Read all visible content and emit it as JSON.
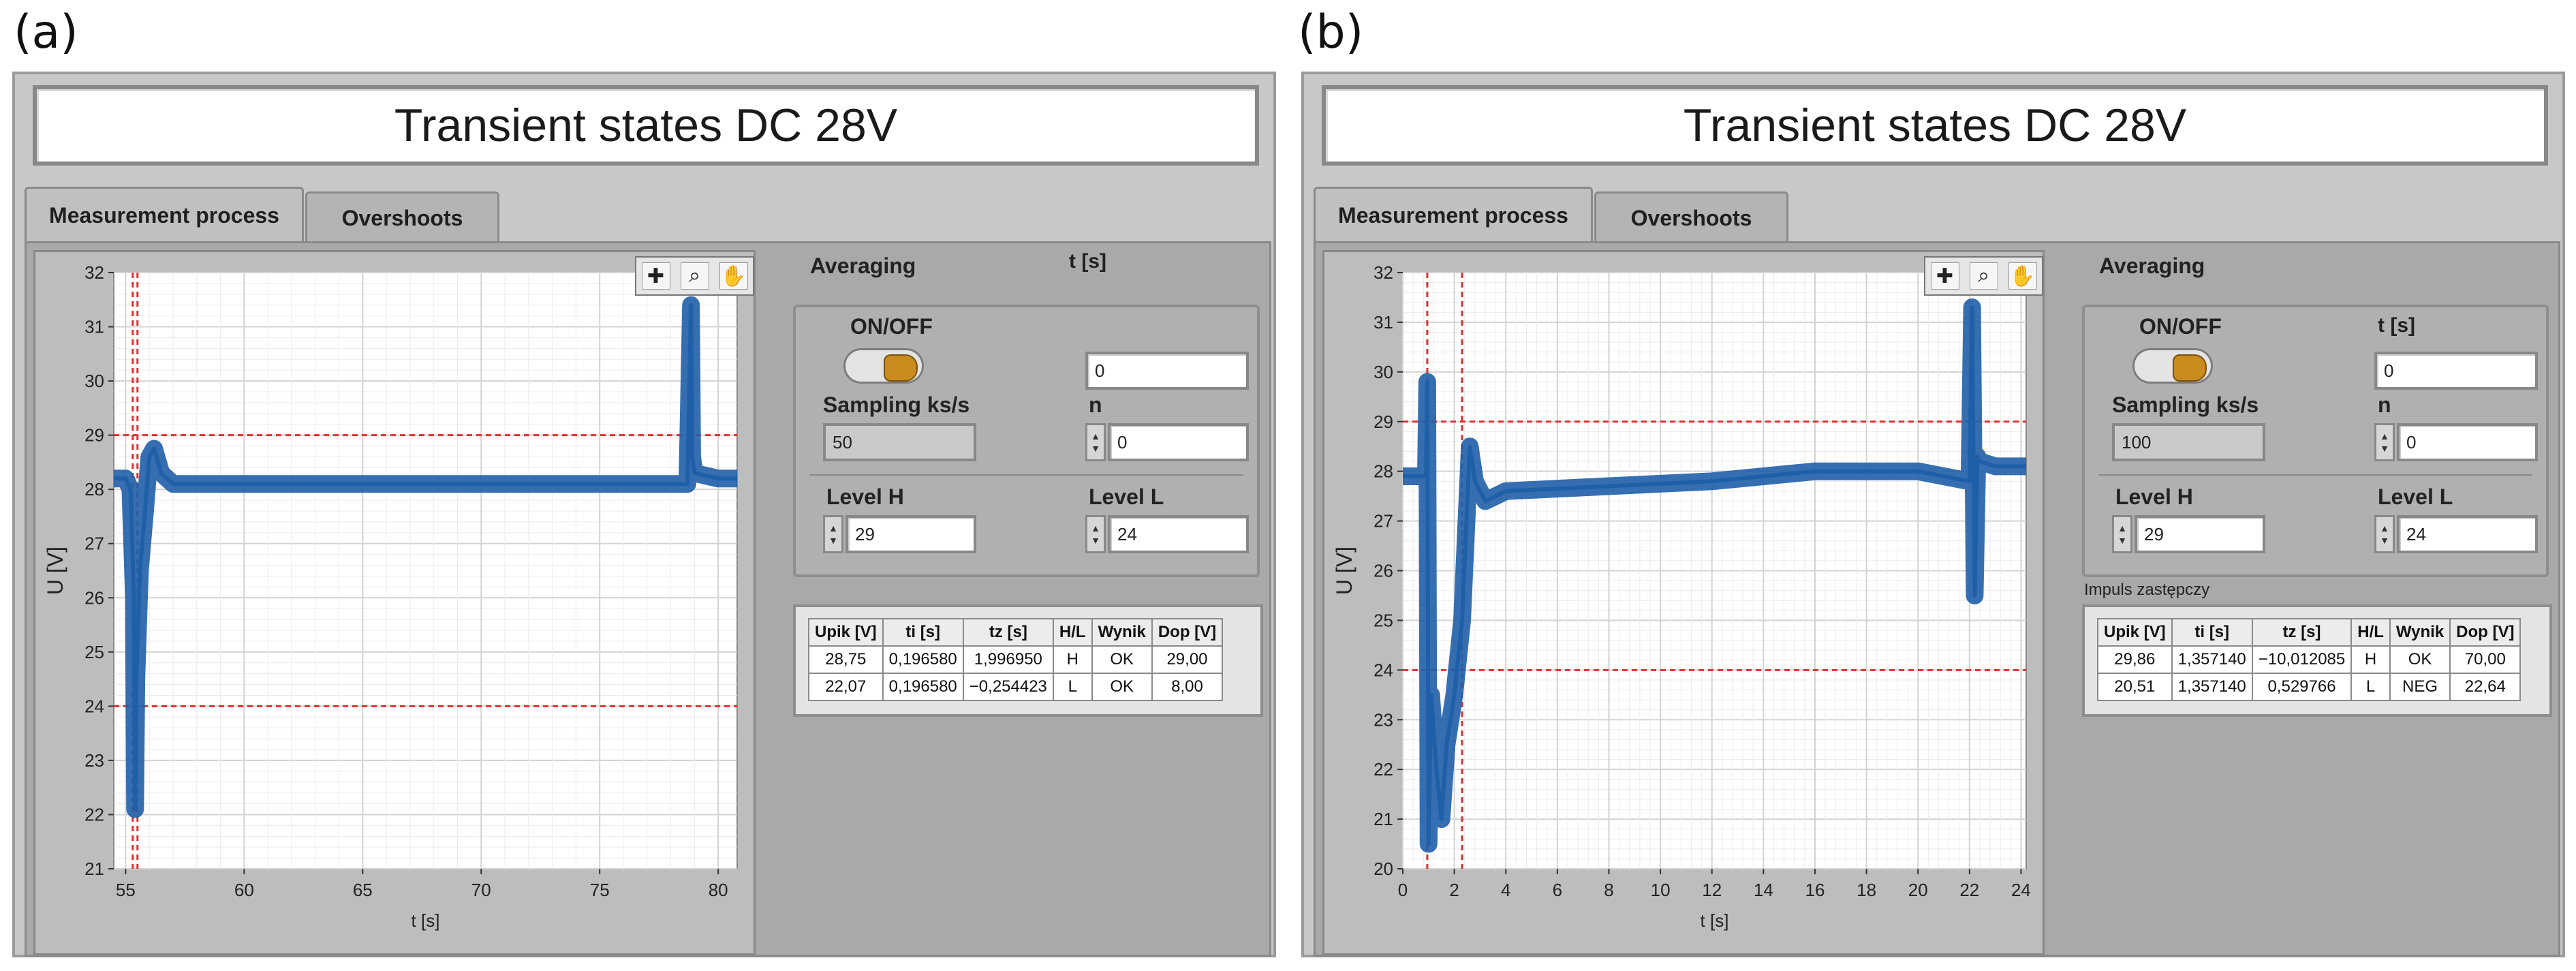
{
  "panels": [
    {
      "letter": "(a)",
      "title": "Transient states DC 28V",
      "tabs": [
        "Measurement process",
        "Overshoots"
      ],
      "averaging_label": "Averaging",
      "onoff_label": "ON/OFF",
      "t_label": "t [s]",
      "t_value": "0",
      "sampling_label": "Sampling ks/s",
      "sampling_value": "50",
      "n_label": "n",
      "n_value": "0",
      "level_h_label": "Level H",
      "level_h_value": "29",
      "level_l_label": "Level L",
      "level_l_value": "24",
      "impuls_label": "",
      "table": {
        "headers": [
          "Upik [V]",
          "ti [s]",
          "tz [s]",
          "H/L",
          "Wynik",
          "Dop [V]"
        ],
        "rows": [
          [
            "28,75",
            "0,196580",
            "1,996950",
            "H",
            "OK",
            "29,00"
          ],
          [
            "22,07",
            "0,196580",
            "−0,254423",
            "L",
            "OK",
            "8,00"
          ]
        ]
      },
      "chart_data": {
        "type": "line",
        "xlabel": "t [s]",
        "ylabel": "U [V]",
        "xlim": [
          54.5,
          80.8
        ],
        "ylim": [
          21,
          32
        ],
        "x_ticks": [
          "55",
          "60",
          "65",
          "70",
          "75",
          "80"
        ],
        "y_ticks": [
          "21",
          "22",
          "23",
          "24",
          "25",
          "26",
          "27",
          "28",
          "29",
          "30",
          "31",
          "32"
        ],
        "grid": true,
        "line_color": "#1f5fa8",
        "band_color": "#1f5fa8",
        "level_lines": [
          29,
          24
        ],
        "cursor_lines": [
          55.3,
          55.5
        ],
        "series": [
          {
            "x": [
              54.5,
              55.0,
              55.2,
              55.35,
              55.4,
              55.45,
              55.6,
              55.8,
              56.0,
              56.2,
              56.5,
              57.0,
              58.0,
              60.0,
              65.0,
              70.0,
              75.0,
              78.0,
              78.7,
              78.85,
              78.9,
              79.0,
              80.0,
              80.8
            ],
            "y": [
              28.2,
              28.2,
              28.0,
              26.0,
              22.1,
              24.5,
              26.5,
              27.5,
              28.6,
              28.75,
              28.3,
              28.1,
              28.1,
              28.1,
              28.1,
              28.1,
              28.1,
              28.1,
              28.1,
              31.4,
              28.6,
              28.3,
              28.2,
              28.2
            ]
          }
        ]
      }
    },
    {
      "letter": "(b)",
      "title": "Transient states DC 28V",
      "tabs": [
        "Measurement process",
        "Overshoots"
      ],
      "averaging_label": "Averaging",
      "onoff_label": "ON/OFF",
      "t_label": "t [s]",
      "t_value": "0",
      "sampling_label": "Sampling ks/s",
      "sampling_value": "100",
      "n_label": "n",
      "n_value": "0",
      "level_h_label": "Level H",
      "level_h_value": "29",
      "level_l_label": "Level L",
      "level_l_value": "24",
      "impuls_label": "Impuls zastępczy",
      "table": {
        "headers": [
          "Upik [V]",
          "ti [s]",
          "tz [s]",
          "H/L",
          "Wynik",
          "Dop [V]"
        ],
        "rows": [
          [
            "29,86",
            "1,357140",
            "−10,012085",
            "H",
            "OK",
            "70,00"
          ],
          [
            "20,51",
            "1,357140",
            "0,529766",
            "L",
            "NEG",
            "22,64"
          ]
        ]
      },
      "chart_data": {
        "type": "line",
        "xlabel": "t [s]",
        "ylabel": "U [V]",
        "xlim": [
          0,
          24.2
        ],
        "ylim": [
          20,
          32
        ],
        "x_ticks": [
          "0",
          "2",
          "4",
          "6",
          "8",
          "10",
          "12",
          "14",
          "16",
          "18",
          "20",
          "22",
          "24"
        ],
        "y_ticks": [
          "20",
          "21",
          "22",
          "23",
          "24",
          "25",
          "26",
          "27",
          "28",
          "29",
          "30",
          "31",
          "32"
        ],
        "grid": true,
        "line_color": "#1f5fa8",
        "band_color": "#1f5fa8",
        "level_lines": [
          29,
          24
        ],
        "cursor_lines": [
          0.95,
          2.3
        ],
        "series": [
          {
            "x": [
              0,
              0.9,
              0.95,
              1.0,
              1.1,
              1.3,
              1.5,
              1.7,
              2.0,
              2.3,
              2.6,
              2.8,
              3.2,
              4.0,
              8.0,
              12.0,
              16.0,
              20.0,
              22.0,
              22.1,
              22.2,
              22.3,
              22.4,
              23.0,
              24.2
            ],
            "y": [
              27.9,
              27.9,
              29.8,
              20.5,
              23.5,
              22.0,
              21.0,
              22.5,
              23.5,
              25.0,
              28.5,
              27.8,
              27.4,
              27.6,
              27.7,
              27.8,
              28.0,
              28.0,
              27.8,
              31.3,
              25.5,
              28.3,
              28.2,
              28.1,
              28.1
            ]
          }
        ]
      }
    }
  ]
}
